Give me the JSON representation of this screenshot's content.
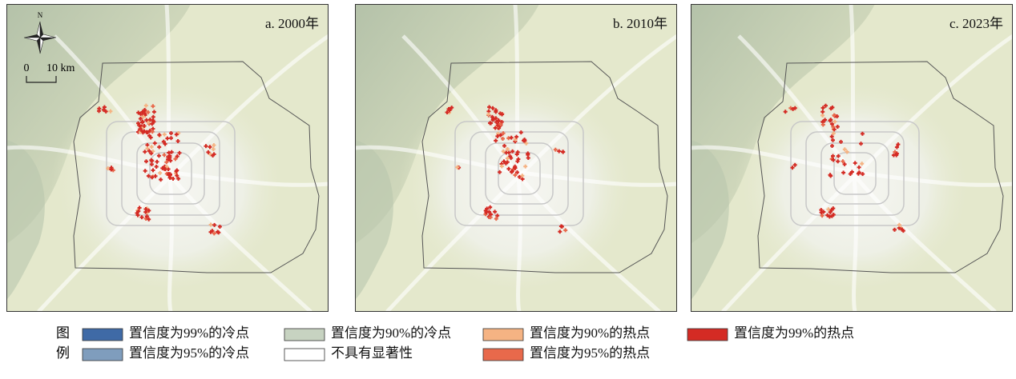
{
  "panels": [
    {
      "title": "a. 2000年"
    },
    {
      "title": "b. 2010年"
    },
    {
      "title": "c. 2023年"
    }
  ],
  "north_label": "N",
  "scale_bar": {
    "start": "0",
    "end": "10 km"
  },
  "legend": {
    "title_lines": [
      "图",
      "例"
    ],
    "items": [
      {
        "label": "置信度为99%的冷点",
        "color": "#3f6aa6"
      },
      {
        "label": "置信度为95%的冷点",
        "color": "#7f9dbd"
      },
      {
        "label": "置信度为90%的冷点",
        "color": "#c7d3c1"
      },
      {
        "label": "不具有显著性",
        "color": "#ffffff"
      },
      {
        "label": "置信度为90%的热点",
        "color": "#f5b383"
      },
      {
        "label": "置信度为95%的热点",
        "color": "#e8694b"
      },
      {
        "label": "置信度为99%的热点",
        "color": "#d42b24"
      }
    ]
  }
}
